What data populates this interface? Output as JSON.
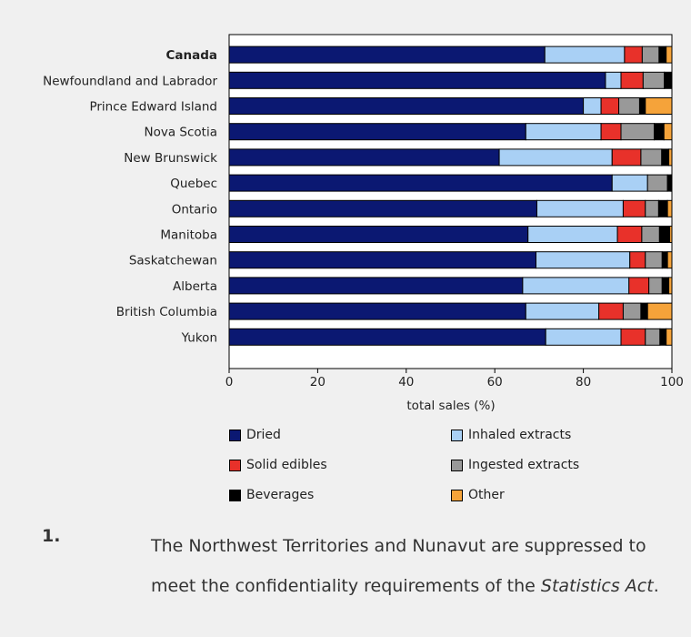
{
  "chart_data": {
    "type": "bar",
    "orientation": "horizontal",
    "stacked": true,
    "categories": [
      "Canada",
      "Newfoundland and Labrador",
      "Prince Edward Island",
      "Nova Scotia",
      "New Brunswick",
      "Quebec",
      "Ontario",
      "Manitoba",
      "Saskatchewan",
      "Alberta",
      "British Columbia",
      "Yukon"
    ],
    "emphasized_category": "Canada",
    "series": [
      {
        "name": "Dried",
        "color": "#0b1872",
        "values": [
          71.3,
          85.0,
          80.0,
          67.0,
          61.0,
          86.5,
          69.5,
          67.5,
          69.3,
          66.3,
          67.0,
          71.5
        ]
      },
      {
        "name": "Inhaled extracts",
        "color": "#a9d0f5",
        "values": [
          18.0,
          3.5,
          4.0,
          17.0,
          25.5,
          8.0,
          19.5,
          20.2,
          21.2,
          24.0,
          16.5,
          17.0
        ]
      },
      {
        "name": "Solid edibles",
        "color": "#e8312a",
        "values": [
          4.0,
          5.0,
          4.0,
          4.5,
          6.5,
          0.0,
          5.0,
          5.5,
          3.5,
          4.5,
          5.5,
          5.5
        ]
      },
      {
        "name": "Ingested extracts",
        "color": "#999999",
        "values": [
          3.8,
          4.8,
          4.7,
          7.5,
          4.7,
          4.5,
          3.0,
          4.0,
          3.8,
          3.0,
          4.0,
          3.3
        ]
      },
      {
        "name": "Beverages",
        "color": "#000000",
        "values": [
          1.6,
          1.7,
          1.3,
          2.2,
          1.6,
          0.8,
          2.0,
          2.3,
          1.2,
          1.5,
          1.5,
          1.4
        ]
      },
      {
        "name": "Other",
        "color": "#f5a33a",
        "values": [
          1.3,
          0.0,
          6.0,
          1.8,
          0.7,
          0.2,
          1.0,
          0.5,
          1.0,
          0.7,
          5.5,
          1.3
        ]
      }
    ],
    "xlabel": "total sales (%)",
    "ylabel": "",
    "xlim": [
      0,
      100
    ],
    "xticks": [
      0,
      20,
      40,
      60,
      80,
      100
    ],
    "grid": false,
    "legend_position": "bottom"
  },
  "legend": [
    {
      "label": "Dried",
      "color": "#0b1872"
    },
    {
      "label": "Inhaled extracts",
      "color": "#a9d0f5"
    },
    {
      "label": "Solid edibles",
      "color": "#e8312a"
    },
    {
      "label": "Ingested extracts",
      "color": "#999999"
    },
    {
      "label": "Beverages",
      "color": "#000000"
    },
    {
      "label": "Other",
      "color": "#f5a33a"
    }
  ],
  "footnote": {
    "number": "1.",
    "text_before": "The Northwest Territories and Nunavut are suppressed to meet the confidentiality requirements of the ",
    "text_italic": "Statistics Act",
    "text_after": "."
  }
}
